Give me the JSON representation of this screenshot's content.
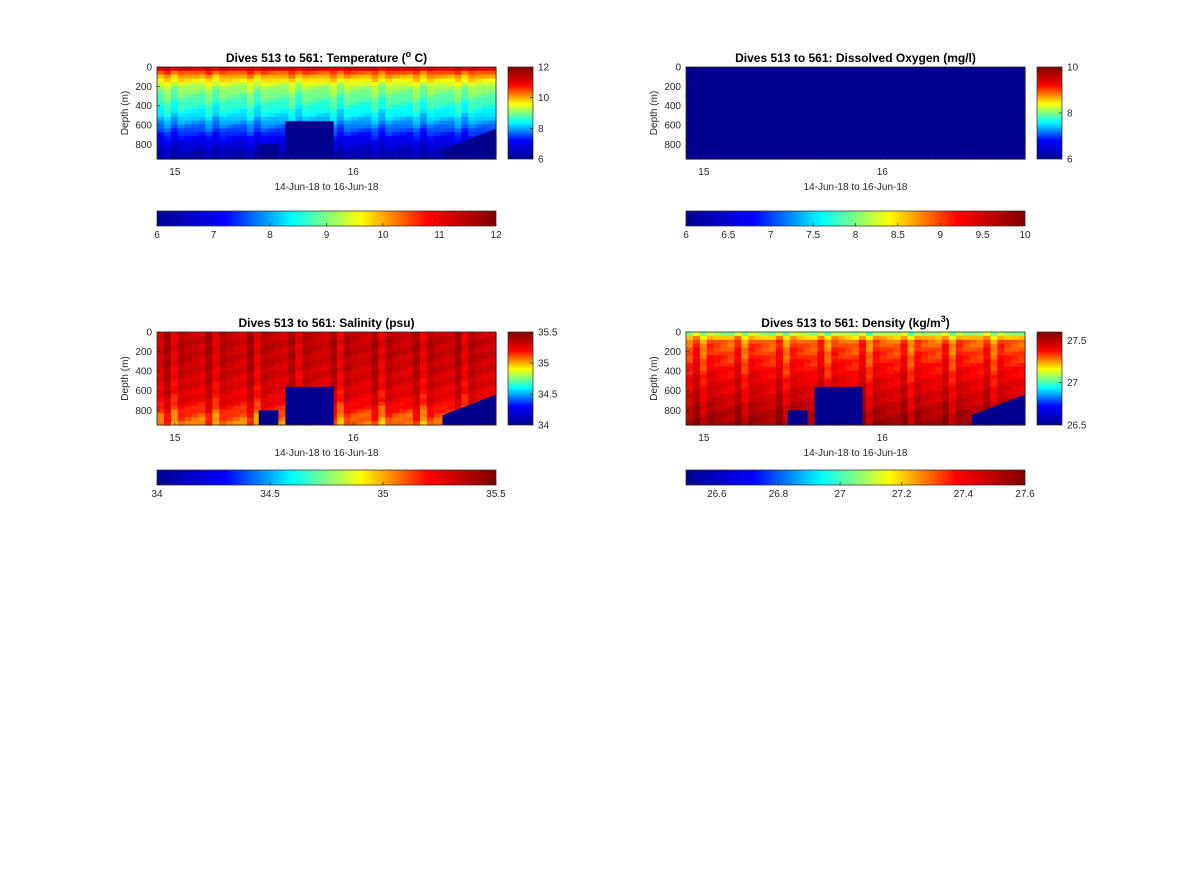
{
  "figure": {
    "title": "",
    "background": "#ffffff",
    "colormap": "jet",
    "colormap_stops": [
      "#00008f",
      "#0000ff",
      "#00ffff",
      "#ffff00",
      "#ff0000",
      "#800000"
    ],
    "mask_color": "#00008f"
  },
  "chart_data": [
    {
      "type": "heatmap",
      "variable": "temperature",
      "title_main": "Dives 513 to 561: Temperature (",
      "title_sup": "o",
      "title_tail": " C)",
      "xlabel": "14-Jun-18 to 16-Jun-18",
      "ylabel": "Depth (m)",
      "x_range": [
        14.9,
        16.8
      ],
      "x_ticks": [
        15,
        16
      ],
      "x_tick_labels": [
        "15",
        "16"
      ],
      "ylim": [
        0,
        950
      ],
      "y_reversed": true,
      "y_ticks": [
        0,
        200,
        400,
        600,
        800
      ],
      "y_tick_labels": [
        "0",
        "200",
        "400",
        "600",
        "800"
      ],
      "clim": [
        6,
        12
      ],
      "side_colorbar_ticks": [
        6,
        8,
        10,
        12
      ],
      "side_colorbar_labels": [
        "6",
        "8",
        "10",
        "12"
      ],
      "bottom_colorbar_ticks": [
        6,
        7,
        8,
        9,
        10,
        11,
        12
      ],
      "bottom_colorbar_labels": [
        "6",
        "7",
        "8",
        "9",
        "10",
        "11",
        "12"
      ],
      "dive_count": 49,
      "profile_depths_m": [
        0,
        50,
        100,
        200,
        300,
        400,
        500,
        600,
        700,
        800,
        900,
        950
      ],
      "profile_values": [
        11.6,
        10.5,
        10.0,
        9.2,
        8.9,
        8.6,
        8.3,
        7.8,
        7.3,
        6.8,
        6.4,
        6.2
      ],
      "column_variation": 0.2,
      "bottom_mask": [
        {
          "x_start": 15.47,
          "x_end": 15.58,
          "depth": 800
        },
        {
          "x_start": 15.62,
          "x_end": 15.89,
          "depth": 560
        },
        {
          "x_start": 16.5,
          "x_end": 16.8,
          "depth_start": 850,
          "depth_end": 640
        }
      ]
    },
    {
      "type": "heatmap",
      "variable": "dissolved_oxygen",
      "title_main": "Dives 513 to 561: Dissolved Oxygen (mg/l)",
      "title_sup": "",
      "title_tail": "",
      "xlabel": "14-Jun-18 to 16-Jun-18",
      "ylabel": "Depth (m)",
      "x_range": [
        14.9,
        16.8
      ],
      "x_ticks": [
        15,
        16
      ],
      "x_tick_labels": [
        "15",
        "16"
      ],
      "ylim": [
        0,
        950
      ],
      "y_reversed": true,
      "y_ticks": [
        0,
        200,
        400,
        600,
        800
      ],
      "y_tick_labels": [
        "0",
        "200",
        "400",
        "600",
        "800"
      ],
      "clim": [
        6,
        10
      ],
      "side_colorbar_ticks": [
        6,
        8,
        10
      ],
      "side_colorbar_labels": [
        "6",
        "8",
        "10"
      ],
      "bottom_colorbar_ticks": [
        6,
        6.5,
        7,
        7.5,
        8,
        8.5,
        9,
        9.5,
        10
      ],
      "bottom_colorbar_labels": [
        "6",
        "6.5",
        "7",
        "7.5",
        "8",
        "8.5",
        "9",
        "9.5",
        "10"
      ],
      "dive_count": 49,
      "profile_depths_m": [
        0,
        950
      ],
      "profile_values": [
        5.5,
        5.5
      ],
      "column_variation": 0,
      "bottom_mask": []
    },
    {
      "type": "heatmap",
      "variable": "salinity",
      "title_main": "Dives 513 to 561: Salinity (psu)",
      "title_sup": "",
      "title_tail": "",
      "xlabel": "14-Jun-18 to 16-Jun-18",
      "ylabel": "Depth (m)",
      "x_range": [
        14.9,
        16.8
      ],
      "x_ticks": [
        15,
        16
      ],
      "x_tick_labels": [
        "15",
        "16"
      ],
      "ylim": [
        0,
        950
      ],
      "y_reversed": true,
      "y_ticks": [
        0,
        200,
        400,
        600,
        800
      ],
      "y_tick_labels": [
        "0",
        "200",
        "400",
        "600",
        "800"
      ],
      "clim": [
        34,
        35.5
      ],
      "side_colorbar_ticks": [
        34,
        34.5,
        35,
        35.5
      ],
      "side_colorbar_labels": [
        "34",
        "34.5",
        "35",
        "35.5"
      ],
      "bottom_colorbar_ticks": [
        34,
        34.5,
        35,
        35.5
      ],
      "bottom_colorbar_labels": [
        "34",
        "34.5",
        "35",
        "35.5"
      ],
      "dive_count": 49,
      "profile_depths_m": [
        0,
        100,
        300,
        500,
        700,
        850,
        950
      ],
      "profile_values": [
        35.32,
        35.35,
        35.33,
        35.3,
        35.25,
        35.12,
        35.05
      ],
      "column_variation": 0.09,
      "bottom_mask": [
        {
          "x_start": 15.47,
          "x_end": 15.58,
          "depth": 800
        },
        {
          "x_start": 15.62,
          "x_end": 15.89,
          "depth": 560
        },
        {
          "x_start": 16.5,
          "x_end": 16.8,
          "depth_start": 850,
          "depth_end": 640
        }
      ]
    },
    {
      "type": "heatmap",
      "variable": "density",
      "title_main": "Dives 513 to 561: Density (kg/m",
      "title_sup": "3",
      "title_tail": ")",
      "xlabel": "14-Jun-18 to 16-Jun-18",
      "ylabel": "Depth (m)",
      "x_range": [
        14.9,
        16.8
      ],
      "x_ticks": [
        15,
        16
      ],
      "x_tick_labels": [
        "15",
        "16"
      ],
      "ylim": [
        0,
        950
      ],
      "y_reversed": true,
      "y_ticks": [
        0,
        200,
        400,
        600,
        800
      ],
      "y_tick_labels": [
        "0",
        "200",
        "400",
        "600",
        "800"
      ],
      "clim": [
        26.5,
        27.6
      ],
      "side_colorbar_ticks": [
        26.5,
        27,
        27.5
      ],
      "side_colorbar_labels": [
        "26.5",
        "27",
        "27.5"
      ],
      "bottom_colorbar_ticks": [
        26.6,
        26.8,
        27,
        27.2,
        27.4,
        27.6
      ],
      "bottom_colorbar_labels": [
        "26.6",
        "26.8",
        "27",
        "27.2",
        "27.4",
        "27.6"
      ],
      "dive_count": 49,
      "profile_depths_m": [
        0,
        30,
        100,
        300,
        500,
        700,
        850,
        950
      ],
      "profile_values": [
        26.95,
        27.15,
        27.3,
        27.36,
        27.42,
        27.47,
        27.52,
        27.55
      ],
      "column_variation": 0.06,
      "bottom_mask": [
        {
          "x_start": 15.47,
          "x_end": 15.58,
          "depth": 800
        },
        {
          "x_start": 15.62,
          "x_end": 15.89,
          "depth": 560
        },
        {
          "x_start": 16.5,
          "x_end": 16.8,
          "depth_start": 850,
          "depth_end": 640
        }
      ]
    }
  ]
}
